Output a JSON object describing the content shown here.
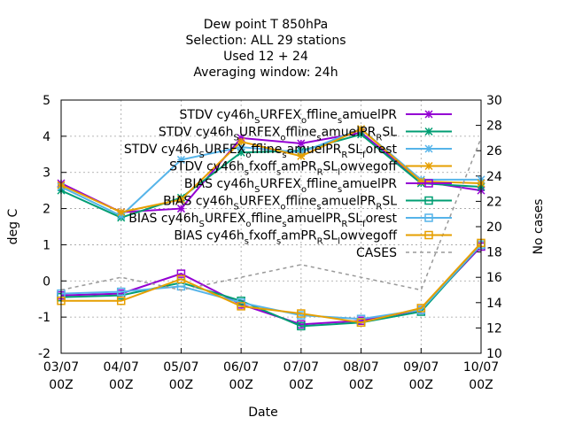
{
  "chart_data": {
    "type": "line",
    "title_lines": [
      "Dew point T 850hPa",
      "Selection: ALL      29 stations",
      "Used  12 + 24",
      "Averaging window: 24h"
    ],
    "xlabel": "Date",
    "ylabel": "deg C",
    "y2label": "No cases",
    "categories": [
      "03/07\n00Z",
      "04/07\n00Z",
      "05/07\n00Z",
      "06/07\n00Z",
      "07/07\n00Z",
      "08/07\n00Z",
      "09/07\n00Z",
      "10/07\n00Z"
    ],
    "ylim": [
      -2,
      5
    ],
    "yticks": [
      -2,
      -1,
      0,
      1,
      2,
      3,
      4,
      5
    ],
    "y2lim": [
      10,
      30
    ],
    "y2ticks": [
      10,
      12,
      14,
      16,
      18,
      20,
      22,
      24,
      26,
      28,
      30
    ],
    "grid": true,
    "legend_position": "top-right",
    "series": [
      {
        "name": "STDV cy46h_SURFEX_offline_samuelPR",
        "values": [
          2.7,
          1.9,
          2.0,
          3.95,
          3.8,
          4.1,
          2.75,
          2.5
        ],
        "color": "#9400d3",
        "marker": "x",
        "axis": "y"
      },
      {
        "name": "STDV cy46h_SURFEX_offline_samuelPR_RSL",
        "values": [
          2.5,
          1.75,
          2.3,
          3.55,
          3.6,
          4.05,
          2.7,
          2.6
        ],
        "color": "#009e73",
        "marker": "x",
        "axis": "y"
      },
      {
        "name": "STDV cy46h_SURFEX_offline_samuelPR_RSL_forest",
        "values": [
          2.6,
          1.8,
          3.35,
          3.7,
          3.55,
          4.2,
          2.8,
          2.8
        ],
        "color": "#56b4e9",
        "marker": "x",
        "axis": "y"
      },
      {
        "name": "STDV cy46h_sfxoff_samPR_RSL_lowvegoff",
        "values": [
          2.65,
          1.9,
          2.25,
          3.85,
          3.45,
          4.2,
          2.75,
          2.7
        ],
        "color": "#e69f00",
        "marker": "x",
        "axis": "y"
      },
      {
        "name": "BIAS cy46h_SURFEX_offline_samuelPR",
        "values": [
          -0.4,
          -0.35,
          0.2,
          -0.65,
          -1.2,
          -1.1,
          -0.8,
          0.95
        ],
        "color": "#9400d3",
        "marker": "square",
        "axis": "y"
      },
      {
        "name": "BIAS cy46h_SURFEX_offline_samuelPR_RSL",
        "values": [
          -0.45,
          -0.4,
          -0.05,
          -0.55,
          -1.25,
          -1.15,
          -0.85,
          1.0
        ],
        "color": "#009e73",
        "marker": "square",
        "axis": "y"
      },
      {
        "name": "BIAS cy46h_SURFEX_offline_samuelPR_RSL_forest",
        "values": [
          -0.35,
          -0.3,
          -0.15,
          -0.6,
          -0.95,
          -1.05,
          -0.8,
          1.0
        ],
        "color": "#56b4e9",
        "marker": "square",
        "axis": "y"
      },
      {
        "name": "BIAS cy46h_sfxoff_samPR_RSL_lowvegoff",
        "values": [
          -0.55,
          -0.55,
          0.05,
          -0.7,
          -0.9,
          -1.15,
          -0.75,
          1.05
        ],
        "color": "#e69f00",
        "marker": "square",
        "axis": "y"
      },
      {
        "name": "CASES",
        "values": [
          15,
          16,
          15,
          16,
          17,
          16,
          15,
          27
        ],
        "color": "#999999",
        "marker": "none",
        "dash": true,
        "axis": "y2"
      }
    ]
  }
}
